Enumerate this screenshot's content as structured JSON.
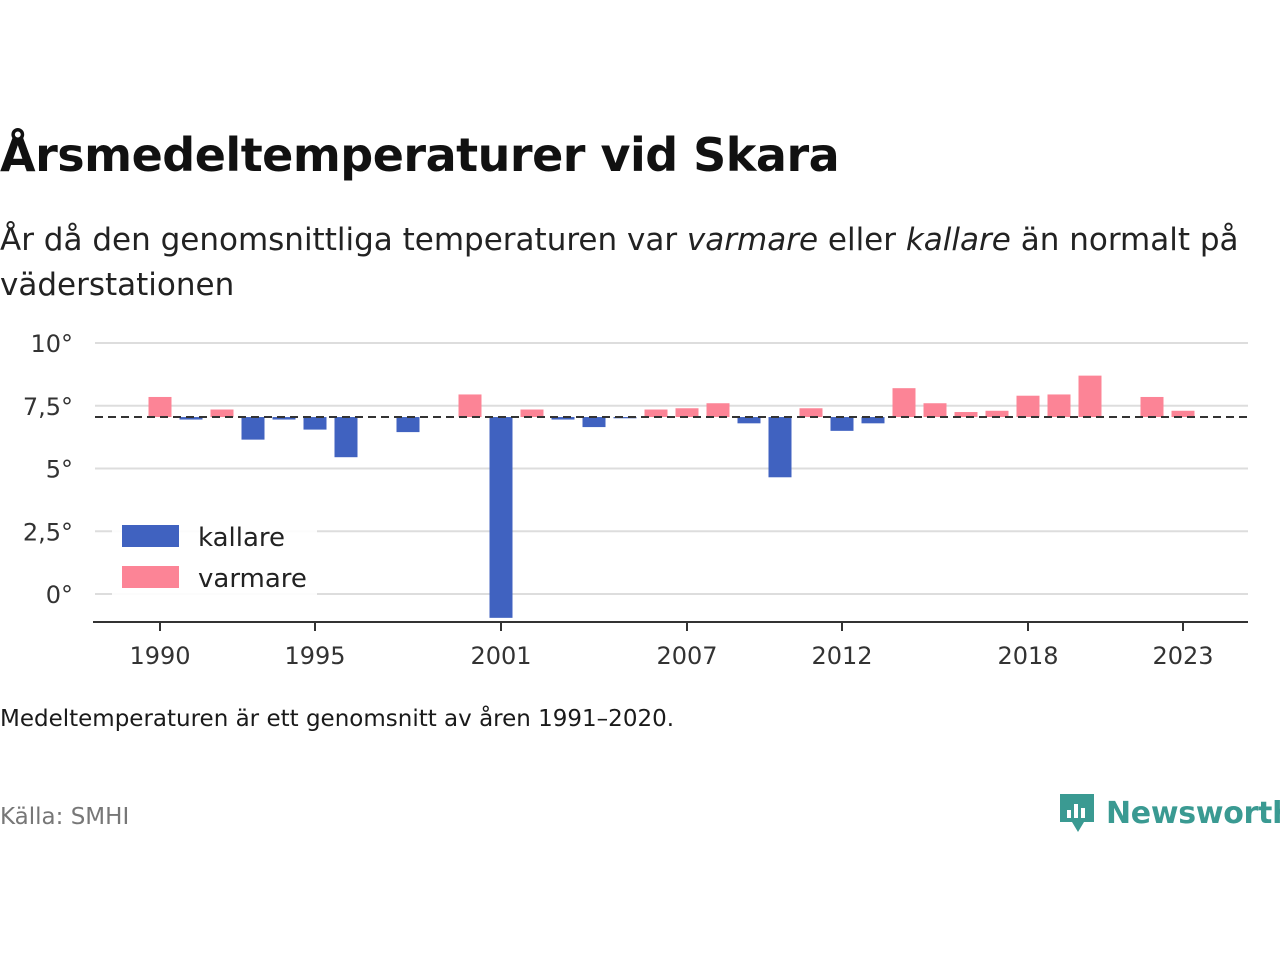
{
  "header": {
    "title": "Årsmedeltemperaturer vid Skara",
    "subtitle_part1": "År då den genomsnittliga temperaturen var ",
    "subtitle_warm": "varmare",
    "subtitle_part2": " eller ",
    "subtitle_cold": "kallare",
    "subtitle_part3": " än normalt på väderstationen"
  },
  "footer": {
    "note": "Medeltemperaturen är ett genomsnitt av åren 1991–2020.",
    "source": "Källa: SMHI",
    "brand": "Newsworthy"
  },
  "colors": {
    "cold": "#4062c0",
    "warm": "#fc8496",
    "brand": "#3a9a92"
  },
  "chart_data": {
    "type": "bar",
    "baseline": 7.05,
    "ylim": [
      -1,
      10
    ],
    "yticks": [
      0,
      2.5,
      5,
      7.5,
      10
    ],
    "ytick_labels": [
      "0°",
      "2,5°",
      "5°",
      "7,5°",
      "10°"
    ],
    "xticks": [
      1990,
      1995,
      2001,
      2007,
      2012,
      2018,
      2023
    ],
    "xtick_labels": [
      "1990",
      "1995",
      "2001",
      "2007",
      "2012",
      "2018",
      "2023"
    ],
    "legend": {
      "position": "bottom-left",
      "items": [
        {
          "label": "kallare",
          "color": "#4062c0"
        },
        {
          "label": "varmare",
          "color": "#fc8496"
        }
      ]
    },
    "grid": true,
    "x": [
      1990,
      1991,
      1992,
      1993,
      1994,
      1995,
      1996,
      1998,
      2000,
      2001,
      2002,
      2003,
      2004,
      2005,
      2006,
      2007,
      2008,
      2009,
      2010,
      2011,
      2012,
      2013,
      2014,
      2015,
      2016,
      2017,
      2018,
      2019,
      2020,
      2022,
      2023
    ],
    "values": [
      7.85,
      6.95,
      7.35,
      6.15,
      6.95,
      6.55,
      5.45,
      6.45,
      7.95,
      -0.95,
      7.35,
      6.95,
      6.65,
      7.0,
      7.35,
      7.4,
      7.6,
      6.8,
      4.65,
      7.4,
      6.5,
      6.8,
      8.2,
      7.6,
      7.25,
      7.3,
      7.9,
      7.95,
      8.7,
      7.85,
      7.3
    ]
  }
}
